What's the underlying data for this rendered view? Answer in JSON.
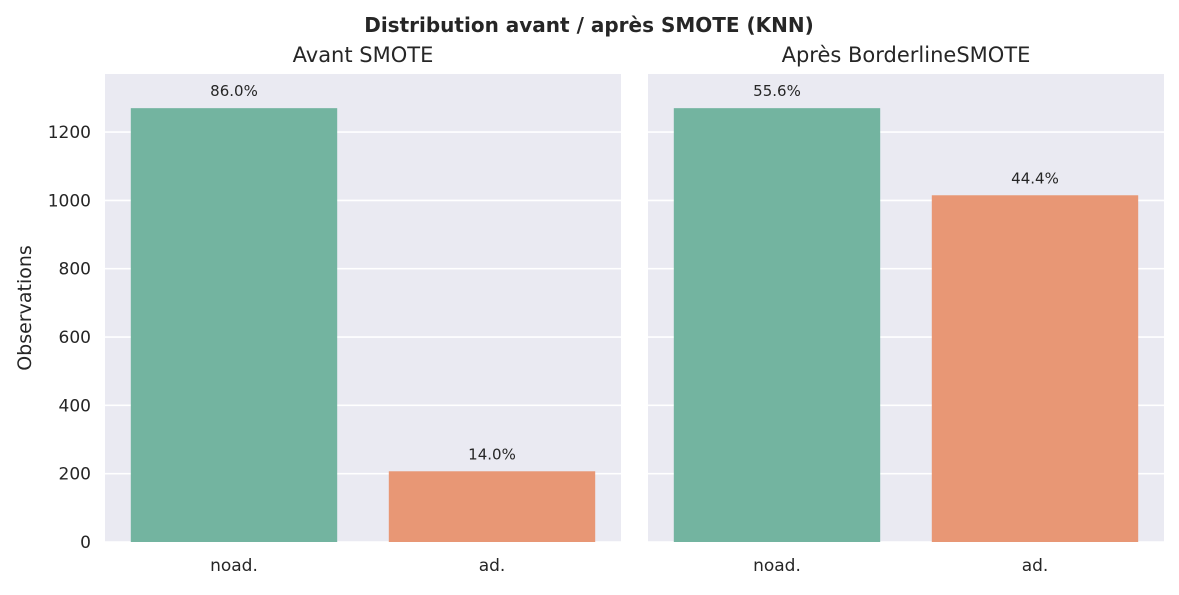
{
  "suptitle": "Distribution avant / après SMOTE (KNN)",
  "colors": {
    "panel_bg": "#EAEAF2",
    "grid": "#FFFFFF",
    "noad": "#73B4A0",
    "ad": "#E89775",
    "text": "#262626"
  },
  "chart_data": [
    {
      "type": "bar",
      "title": "Avant SMOTE",
      "xlabel": "",
      "ylabel": "Observations",
      "categories": [
        "noad.",
        "ad."
      ],
      "values": [
        1270,
        207
      ],
      "labels": [
        "86.0%",
        "14.0%"
      ],
      "ylim": [
        0,
        1370
      ],
      "yticks": [
        0,
        200,
        400,
        600,
        800,
        1000,
        1200
      ],
      "grid": true
    },
    {
      "type": "bar",
      "title": "Après BorderlineSMOTE",
      "xlabel": "",
      "ylabel": "",
      "categories": [
        "noad.",
        "ad."
      ],
      "values": [
        1270,
        1015
      ],
      "labels": [
        "55.6%",
        "44.4%"
      ],
      "ylim": [
        0,
        1370
      ],
      "yticks": [
        0,
        200,
        400,
        600,
        800,
        1000,
        1200
      ],
      "grid": true
    }
  ]
}
